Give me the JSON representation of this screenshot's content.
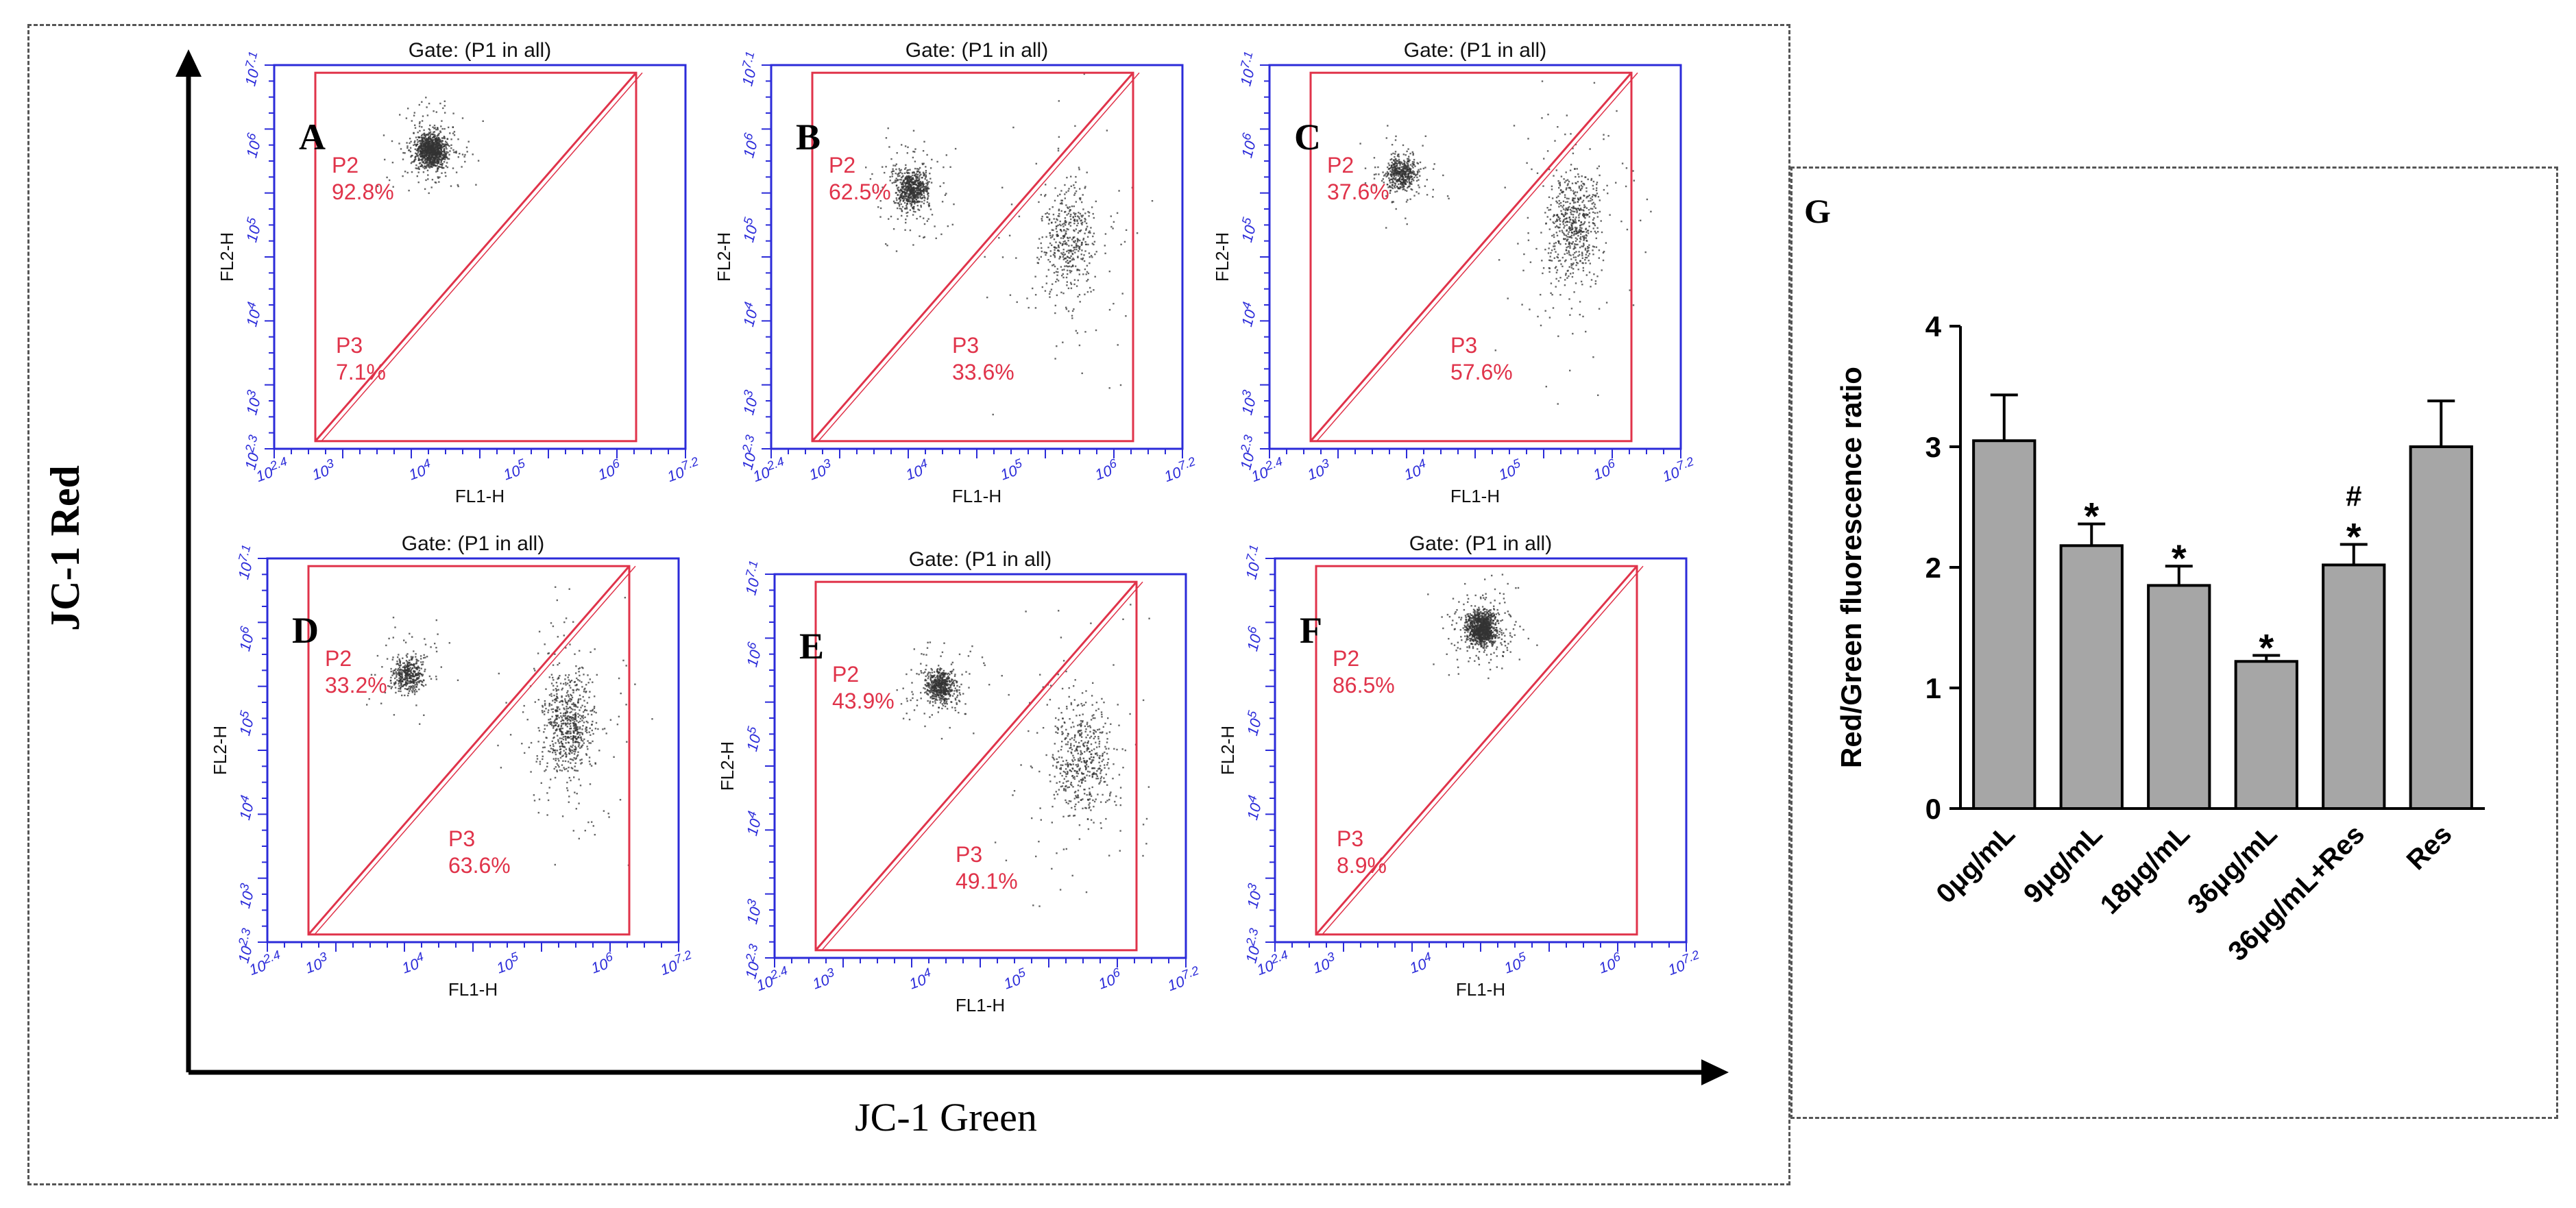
{
  "figure": {
    "y_axis_title": "JC-1 Red",
    "x_axis_title": "JC-1 Green"
  },
  "colors": {
    "plot_border": "#2b2bd9",
    "gate": "#e0334a",
    "dots": "#333333",
    "bar_fill": "#a6a6a6",
    "axis": "#000000"
  },
  "flow_panels": [
    {
      "letter": "A",
      "gate_title": "Gate: (P1 in all)",
      "xlabel": "FL1-H",
      "ylabel": "FL2-H",
      "p2_label": "P2",
      "p2_value": "92.8%",
      "p3_label": "P3",
      "p3_value": "7.1%",
      "x_tick_labels": [
        "10^2.4",
        "10^3",
        "10^4",
        "10^5",
        "10^6",
        "10^7.2"
      ],
      "y_tick_labels": [
        "10^2.3",
        "10^3",
        "10^4",
        "10^5",
        "10^6",
        "10^7.1"
      ]
    },
    {
      "letter": "B",
      "gate_title": "Gate: (P1 in all)",
      "xlabel": "FL1-H",
      "ylabel": "FL2-H",
      "p2_label": "P2",
      "p2_value": "62.5%",
      "p3_label": "P3",
      "p3_value": "33.6%",
      "x_tick_labels": [
        "10^2.4",
        "10^3",
        "10^4",
        "10^5",
        "10^6",
        "10^7.2"
      ],
      "y_tick_labels": [
        "10^2.3",
        "10^3",
        "10^4",
        "10^5",
        "10^6",
        "10^7.1"
      ]
    },
    {
      "letter": "C",
      "gate_title": "Gate: (P1 in all)",
      "xlabel": "FL1-H",
      "ylabel": "FL2-H",
      "p2_label": "P2",
      "p2_value": "37.6%",
      "p3_label": "P3",
      "p3_value": "57.6%",
      "x_tick_labels": [
        "10^2.4",
        "10^3",
        "10^4",
        "10^5",
        "10^6",
        "10^7.2"
      ],
      "y_tick_labels": [
        "10^2.3",
        "10^3",
        "10^4",
        "10^5",
        "10^6",
        "10^7.1"
      ]
    },
    {
      "letter": "D",
      "gate_title": "Gate: (P1 in all)",
      "xlabel": "FL1-H",
      "ylabel": "FL2-H",
      "p2_label": "P2",
      "p2_value": "33.2%",
      "p3_label": "P3",
      "p3_value": "63.6%",
      "x_tick_labels": [
        "10^2.4",
        "10^3",
        "10^4",
        "10^5",
        "10^6",
        "10^7.2"
      ],
      "y_tick_labels": [
        "10^2.3",
        "10^3",
        "10^4",
        "10^5",
        "10^6",
        "10^7.1"
      ]
    },
    {
      "letter": "E",
      "gate_title": "Gate: (P1 in all)",
      "xlabel": "FL1-H",
      "ylabel": "FL2-H",
      "p2_label": "P2",
      "p2_value": "43.9%",
      "p3_label": "P3",
      "p3_value": "49.1%",
      "x_tick_labels": [
        "10^2.4",
        "10^3",
        "10^4",
        "10^5",
        "10^6",
        "10^7.2"
      ],
      "y_tick_labels": [
        "10^2.3",
        "10^3",
        "10^4",
        "10^5",
        "10^6",
        "10^7.1"
      ]
    },
    {
      "letter": "F",
      "gate_title": "Gate: (P1 in all)",
      "xlabel": "FL1-H",
      "ylabel": "FL2-H",
      "p2_label": "P2",
      "p2_value": "86.5%",
      "p3_label": "P3",
      "p3_value": "8.9%",
      "x_tick_labels": [
        "10^2.4",
        "10^3",
        "10^4",
        "10^5",
        "10^6",
        "10^7.2"
      ],
      "y_tick_labels": [
        "10^2.3",
        "10^3",
        "10^4",
        "10^5",
        "10^6",
        "10^7.1"
      ]
    }
  ],
  "chart_data": {
    "type": "bar",
    "panel_letter": "G",
    "title": "",
    "xlabel": "",
    "ylabel": "Red/Green fluorescence ratio",
    "categories": [
      "0μg/mL",
      "9μg/mL",
      "18μg/mL",
      "36μg/mL",
      "36μg/mL+Res",
      "Res"
    ],
    "values": [
      3.05,
      2.18,
      1.85,
      1.22,
      2.02,
      3.0
    ],
    "error_bars": [
      0.38,
      0.18,
      0.16,
      0.05,
      0.17,
      0.38
    ],
    "annotations": [
      "",
      "*",
      "*",
      "*",
      "*\n#",
      ""
    ],
    "ylim": [
      0,
      4
    ],
    "yticks": [
      0,
      1,
      2,
      3,
      4
    ],
    "grid": false,
    "legend": "none"
  }
}
